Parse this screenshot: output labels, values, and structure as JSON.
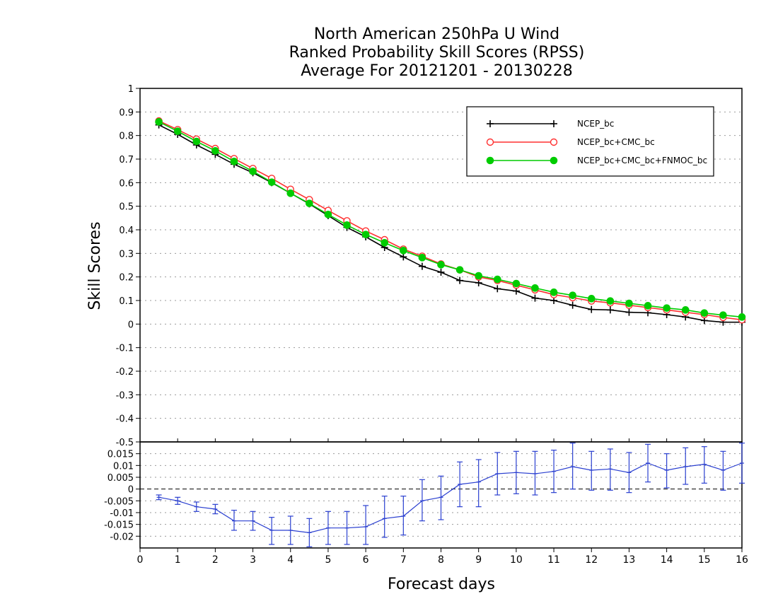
{
  "chart_data": [
    {
      "type": "line",
      "title": [
        "North American 250hPa U Wind",
        "Ranked Probability Skill Scores (RPSS)",
        "Average For 20121201 - 20130228"
      ],
      "xlabel": "Forecast days",
      "ylabel": "Skill Scores",
      "xlim": [
        0,
        16
      ],
      "ylim": [
        -0.5,
        1
      ],
      "x_ticks": [
        "0",
        "1",
        "2",
        "3",
        "4",
        "5",
        "6",
        "7",
        "8",
        "9",
        "10",
        "11",
        "12",
        "13",
        "14",
        "15",
        "16"
      ],
      "y_ticks": [
        "-0.5",
        "-0.4",
        "-0.3",
        "-0.2",
        "-0.1",
        "0",
        "0.1",
        "0.2",
        "0.3",
        "0.4",
        "0.5",
        "0.6",
        "0.7",
        "0.8",
        "0.9",
        "1"
      ],
      "grid": "horizontal dotted",
      "legend_position": "top-right",
      "x": [
        0.5,
        1,
        1.5,
        2,
        2.5,
        3,
        3.5,
        4,
        4.5,
        5,
        5.5,
        6,
        6.5,
        7,
        7.5,
        8,
        8.5,
        9,
        9.5,
        10,
        10.5,
        11,
        11.5,
        12,
        12.5,
        13,
        13.5,
        14,
        14.5,
        15,
        15.5,
        16
      ],
      "series": [
        {
          "name": "NCEP_bc",
          "color": "#000000",
          "marker": "plus",
          "values": [
            0.845,
            0.805,
            0.76,
            0.72,
            0.678,
            0.642,
            0.6,
            0.555,
            0.51,
            0.46,
            0.41,
            0.37,
            0.325,
            0.285,
            0.245,
            0.22,
            0.185,
            0.175,
            0.15,
            0.14,
            0.11,
            0.1,
            0.08,
            0.062,
            0.06,
            0.05,
            0.048,
            0.04,
            0.03,
            0.015,
            0.008,
            0.008
          ]
        },
        {
          "name": "NCEP_bc+CMC_bc",
          "color": "#ff3030",
          "marker": "open-circle",
          "values": [
            0.862,
            0.825,
            0.785,
            0.745,
            0.702,
            0.66,
            0.618,
            0.572,
            0.528,
            0.482,
            0.438,
            0.395,
            0.358,
            0.318,
            0.288,
            0.255,
            0.23,
            0.2,
            0.185,
            0.165,
            0.145,
            0.125,
            0.112,
            0.098,
            0.09,
            0.08,
            0.07,
            0.06,
            0.05,
            0.04,
            0.028,
            0.018
          ]
        },
        {
          "name": "NCEP_bc+CMC_bc+FNMOC_bc",
          "color": "#00cc00",
          "marker": "filled-circle",
          "values": [
            0.858,
            0.818,
            0.775,
            0.735,
            0.69,
            0.648,
            0.602,
            0.555,
            0.512,
            0.465,
            0.42,
            0.38,
            0.345,
            0.312,
            0.282,
            0.252,
            0.23,
            0.205,
            0.19,
            0.172,
            0.153,
            0.135,
            0.122,
            0.108,
            0.098,
            0.088,
            0.078,
            0.068,
            0.06,
            0.047,
            0.038,
            0.03
          ]
        }
      ]
    },
    {
      "type": "line",
      "xlim": [
        0,
        16
      ],
      "ylim": [
        -0.025,
        0.02
      ],
      "y_ticks": [
        "-0.02",
        "-0.015",
        "-0.01",
        "-0.005",
        "0",
        "0.005",
        "0.01",
        "0.015"
      ],
      "reference_line": 0,
      "series": [
        {
          "name": "",
          "color": "#2a3fd0",
          "marker": "error-bar",
          "values": [
            -0.0035,
            -0.005,
            -0.0075,
            -0.0085,
            -0.0135,
            -0.0135,
            -0.0175,
            -0.0175,
            -0.0185,
            -0.0165,
            -0.0165,
            -0.016,
            -0.0125,
            -0.0115,
            -0.005,
            -0.0035,
            0.002,
            0.003,
            0.0065,
            0.007,
            0.0065,
            0.0075,
            0.0095,
            0.008,
            0.0085,
            0.007,
            0.011,
            0.008,
            0.0095,
            0.0105,
            0.008,
            0.011
          ],
          "err_low": [
            -0.0045,
            -0.0065,
            -0.0095,
            -0.0105,
            -0.0175,
            -0.0175,
            -0.0235,
            -0.0235,
            -0.0245,
            -0.0235,
            -0.0235,
            -0.0235,
            -0.0205,
            -0.0195,
            -0.0135,
            -0.013,
            -0.0075,
            -0.0075,
            -0.0025,
            -0.002,
            -0.0025,
            -0.0015,
            0.0,
            -0.0005,
            -0.0005,
            -0.0015,
            0.003,
            0.0005,
            0.002,
            0.0025,
            -0.0005,
            0.0025
          ],
          "err_high": [
            -0.0025,
            -0.0035,
            -0.0055,
            -0.0065,
            -0.009,
            -0.0095,
            -0.012,
            -0.0115,
            -0.0125,
            -0.0095,
            -0.0095,
            -0.007,
            -0.003,
            -0.003,
            0.004,
            0.0055,
            0.0115,
            0.0125,
            0.0155,
            0.016,
            0.016,
            0.0165,
            0.0195,
            0.016,
            0.017,
            0.0155,
            0.019,
            0.015,
            0.0175,
            0.018,
            0.016,
            0.0195
          ]
        }
      ]
    }
  ]
}
